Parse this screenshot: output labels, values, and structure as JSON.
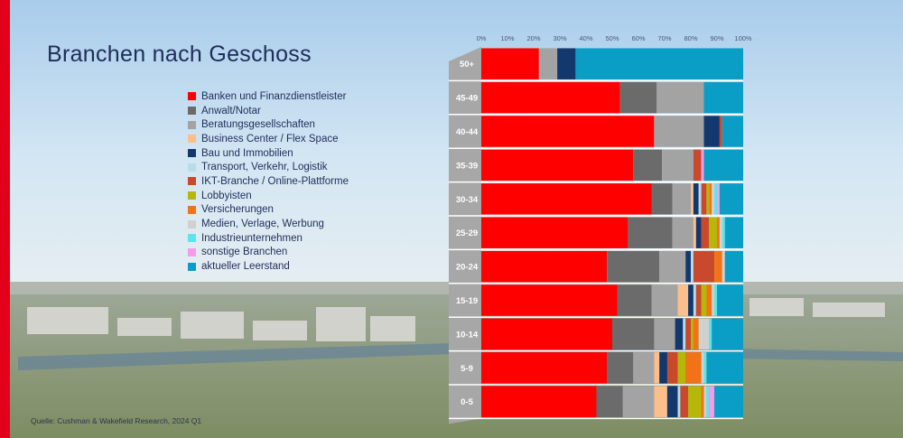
{
  "title": "Branchen nach Geschoss",
  "source": "Quelle: Cushman & Wakefield Research, 2024 Q1",
  "chart_data": {
    "type": "bar",
    "orientation": "horizontal",
    "stacked": true,
    "percent": true,
    "x_ticks": [
      "0%",
      "10%",
      "20%",
      "30%",
      "40%",
      "50%",
      "60%",
      "70%",
      "80%",
      "90%",
      "100%"
    ],
    "xlim": [
      0,
      100
    ],
    "legend_position": "left",
    "categories": [
      "50+",
      "45-49",
      "40-44",
      "35-39",
      "30-34",
      "25-29",
      "20-24",
      "15-19",
      "10-14",
      "5-9",
      "0-5"
    ],
    "series": [
      {
        "name": "Banken und Finanzdienstleister",
        "color": "#ff0000",
        "values": [
          22,
          53,
          66,
          58,
          65,
          56,
          48,
          52,
          50,
          48,
          44
        ]
      },
      {
        "name": "Anwalt/Notar",
        "color": "#6b6b6b",
        "values": [
          0,
          14,
          0,
          11,
          8,
          17,
          20,
          13,
          16,
          10,
          10
        ]
      },
      {
        "name": "Beratungsgesellschaften",
        "color": "#a3a3a3",
        "values": [
          7,
          18,
          19,
          12,
          7,
          8,
          10,
          10,
          8,
          8,
          12
        ]
      },
      {
        "name": "Business Center / Flex Space",
        "color": "#fbbf8c",
        "values": [
          0,
          0,
          0,
          0,
          1,
          1,
          0,
          4,
          0,
          2,
          5
        ]
      },
      {
        "name": "Bau und Immobilien",
        "color": "#13386e",
        "values": [
          7,
          0,
          6,
          0,
          2,
          2,
          2,
          2,
          3,
          3,
          4
        ]
      },
      {
        "name": "Transport, Verkehr, Logistik",
        "color": "#b7dcea",
        "values": [
          0,
          0,
          0,
          0,
          1,
          0,
          1,
          1,
          1,
          0,
          1
        ]
      },
      {
        "name": "IKT-Branche / Online-Plattforme",
        "color": "#c8492c",
        "values": [
          0,
          0,
          1,
          3,
          2,
          3,
          8,
          2,
          2,
          4,
          3
        ]
      },
      {
        "name": "Lobbyisten",
        "color": "#b5b80a",
        "values": [
          0,
          0,
          0,
          0,
          1,
          3,
          0,
          2,
          1,
          3,
          5
        ]
      },
      {
        "name": "Versicherungen",
        "color": "#f07318",
        "values": [
          0,
          0,
          0,
          0,
          1,
          1,
          3,
          2,
          2,
          6,
          1
        ]
      },
      {
        "name": "Medien, Verlage, Werbung",
        "color": "#d0d0d0",
        "values": [
          0,
          0,
          0,
          0,
          1,
          1,
          1,
          1,
          4,
          1,
          1
        ]
      },
      {
        "name": "Industrieunternehmen",
        "color": "#5ce6ec",
        "values": [
          0,
          0,
          0,
          0,
          1,
          1,
          0,
          1,
          1,
          1,
          1
        ]
      },
      {
        "name": "sonstige Branchen",
        "color": "#f49bea",
        "values": [
          0,
          0,
          0,
          1,
          1,
          0,
          0,
          0,
          0,
          0,
          2
        ]
      },
      {
        "name": "aktueller Leerstand",
        "color": "#0a9ec7",
        "values": [
          64,
          15,
          8,
          15,
          9,
          7,
          7,
          10,
          12,
          14,
          11
        ]
      }
    ]
  }
}
